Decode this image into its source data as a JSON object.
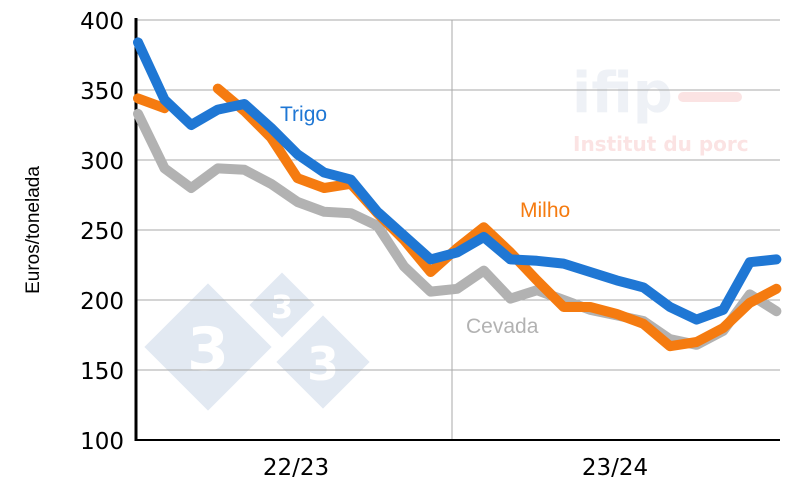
{
  "chart_data": {
    "type": "line",
    "title": "",
    "xlabel": "",
    "ylabel": "Euros/tonelada",
    "ylim": [
      100,
      400
    ],
    "yticks": [
      "100",
      "150",
      "200",
      "250",
      "300",
      "350",
      "400"
    ],
    "xtick_labels": [
      "22/23",
      "23/24"
    ],
    "grid": "horizontal on, one vertical separator between seasons",
    "legend": "inline labels",
    "series": [
      {
        "name": "Trigo",
        "color": "#1f77d4",
        "values": [
          384,
          343,
          325,
          336,
          340,
          323,
          304,
          291,
          286,
          263,
          246,
          229,
          234,
          245,
          229,
          228,
          226,
          220,
          214,
          209,
          195,
          186,
          193,
          227,
          229
        ]
      },
      {
        "name": "Milho",
        "color": "#f57b10",
        "values": [
          344,
          337,
          null,
          351,
          335,
          316,
          287,
          280,
          283,
          262,
          243,
          220,
          237,
          252,
          234,
          214,
          195,
          195,
          190,
          183,
          167,
          170,
          180,
          198,
          208
        ]
      },
      {
        "name": "Cevada",
        "color": "#b2b2b2",
        "values": [
          333,
          294,
          280,
          294,
          293,
          283,
          270,
          263,
          262,
          253,
          224,
          206,
          208,
          221,
          201,
          207,
          200,
          193,
          189,
          185,
          172,
          168,
          178,
          204,
          192
        ]
      }
    ]
  },
  "watermarks": {
    "ifip_logo": "ifip",
    "ifip_tagline": "Institut du porc",
    "logo_333": "333"
  }
}
